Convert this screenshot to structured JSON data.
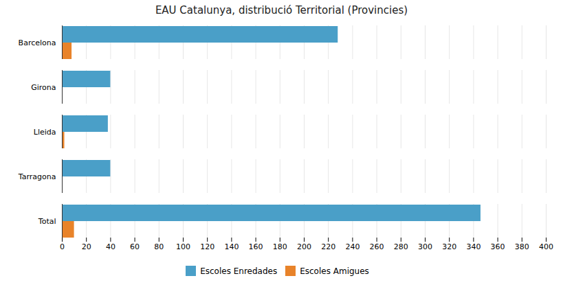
{
  "chart_data": {
    "type": "bar",
    "orientation": "horizontal",
    "title": "EAU Catalunya, distribució Territorial (Provincies)",
    "categories": [
      "Barcelona",
      "Girona",
      "Lleida",
      "Tarragona",
      "Total"
    ],
    "series": [
      {
        "name": "Escoles Enredades",
        "color": "#4a9fc8",
        "values": [
          228,
          40,
          38,
          40,
          346
        ]
      },
      {
        "name": "Escoles Amigues",
        "color": "#e8832a",
        "values": [
          8,
          0,
          2,
          0,
          10
        ]
      }
    ],
    "xlim": [
      0,
      400
    ],
    "xticks": [
      0,
      20,
      40,
      60,
      80,
      100,
      120,
      140,
      160,
      180,
      200,
      220,
      240,
      260,
      280,
      300,
      320,
      340,
      360,
      380,
      400
    ],
    "grid": true,
    "legend": "bottom"
  }
}
